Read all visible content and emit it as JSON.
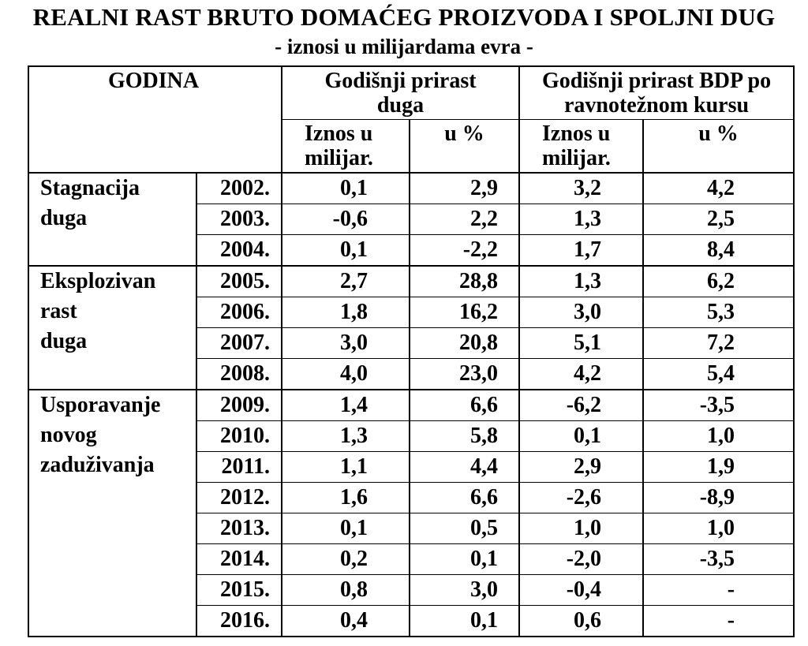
{
  "title": "REALNI RAST  BRUTO DOMAĆEG PROIZVODA I SPOLJNI DUG",
  "subtitle": "- iznosi u milijardama evra -",
  "header": {
    "godina": "GODINA",
    "group1": [
      "Godišnji prirast",
      "duga"
    ],
    "group2": [
      "Godišnji prirast BDP po",
      "ravnotežnom kursu"
    ],
    "iznos": [
      "Iznos u",
      "milijar."
    ],
    "pct": "u %"
  },
  "groups": [
    {
      "label": [
        "Stagnacija",
        "duga"
      ],
      "rows": [
        {
          "year": "2002.",
          "debt_amt": "0,1",
          "debt_pct": "2,9",
          "gdp_amt": "3,2",
          "gdp_pct": "4,2"
        },
        {
          "year": "2003.",
          "debt_amt": "-0,6",
          "debt_pct": "2,2",
          "gdp_amt": "1,3",
          "gdp_pct": "2,5"
        },
        {
          "year": "2004.",
          "debt_amt": "0,1",
          "debt_pct": "-2,2",
          "gdp_amt": "1,7",
          "gdp_pct": "8,4"
        }
      ]
    },
    {
      "label": [
        "Eksplozivan",
        "rast",
        "duga"
      ],
      "rows": [
        {
          "year": "2005.",
          "debt_amt": "2,7",
          "debt_pct": "28,8",
          "gdp_amt": "1,3",
          "gdp_pct": "6,2"
        },
        {
          "year": "2006.",
          "debt_amt": "1,8",
          "debt_pct": "16,2",
          "gdp_amt": "3,0",
          "gdp_pct": "5,3"
        },
        {
          "year": "2007.",
          "debt_amt": "3,0",
          "debt_pct": "20,8",
          "gdp_amt": "5,1",
          "gdp_pct": "7,2"
        },
        {
          "year": "2008.",
          "debt_amt": "4,0",
          "debt_pct": "23,0",
          "gdp_amt": "4,2",
          "gdp_pct": "5,4"
        }
      ]
    },
    {
      "label": [
        "Usporavanje",
        "novog",
        "zaduživanja"
      ],
      "rows": [
        {
          "year": "2009.",
          "debt_amt": "1,4",
          "debt_pct": "6,6",
          "gdp_amt": "-6,2",
          "gdp_pct": "-3,5"
        },
        {
          "year": "2010.",
          "debt_amt": "1,3",
          "debt_pct": "5,8",
          "gdp_amt": "0,1",
          "gdp_pct": "1,0"
        },
        {
          "year": "2011.",
          "debt_amt": "1,1",
          "debt_pct": "4,4",
          "gdp_amt": "2,9",
          "gdp_pct": "1,9"
        },
        {
          "year": "2012.",
          "debt_amt": "1,6",
          "debt_pct": "6,6",
          "gdp_amt": "-2,6",
          "gdp_pct": "-8,9"
        },
        {
          "year": "2013.",
          "debt_amt": "0,1",
          "debt_pct": "0,5",
          "gdp_amt": "1,0",
          "gdp_pct": "1,0"
        },
        {
          "year": "2014.",
          "debt_amt": "0,2",
          "debt_pct": "0,1",
          "gdp_amt": "-2,0",
          "gdp_pct": "-3,5"
        },
        {
          "year": "2015.",
          "debt_amt": "0,8",
          "debt_pct": "3,0",
          "gdp_amt": "-0,4",
          "gdp_pct": "-"
        },
        {
          "year": "2016.",
          "debt_amt": "0,4",
          "debt_pct": "0,1",
          "gdp_amt": "0,6",
          "gdp_pct": "-"
        }
      ]
    }
  ]
}
